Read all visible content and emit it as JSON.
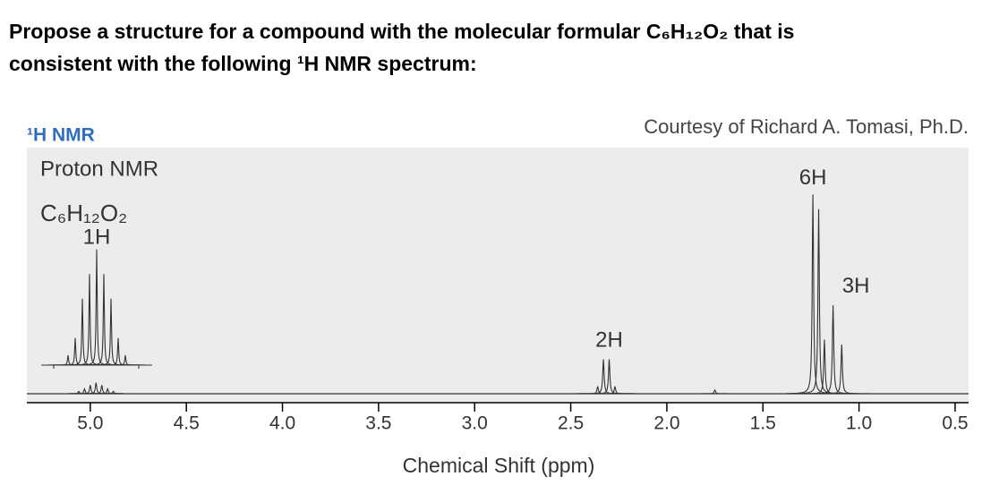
{
  "question": [
    "Propose a structure for a compound with the molecular formular C₆H₁₂O₂ that is",
    "consistent with the following ¹H NMR spectrum:"
  ],
  "chart_data": {
    "type": "nmr",
    "header": "¹H NMR",
    "credit": "Courtesy of Richard A. Tomasi, Ph.D.",
    "annotations": [
      "Proton NMR",
      "C₆H₁₂O₂"
    ],
    "xlabel": "Chemical Shift (ppm)",
    "xlim": [
      5.33,
      0.43
    ],
    "ylim": [
      0,
      100
    ],
    "xticks": [
      {
        "value": 5,
        "label": "5.0"
      },
      4.5,
      {
        "value": 4,
        "label": "4.0"
      },
      3.5,
      {
        "value": 3,
        "label": "3.0"
      },
      2.5,
      {
        "value": 2,
        "label": "2.0"
      },
      1.5,
      {
        "value": 1,
        "label": "1.0"
      },
      0.5
    ],
    "peaks": {
      "x": [
        5.06,
        5.03,
        5.0,
        4.97,
        4.94,
        4.91,
        4.88,
        2.36,
        2.33,
        2.3,
        2.27,
        1.75,
        1.24,
        1.21,
        1.18,
        1.135,
        1.09
      ],
      "y": [
        1,
        2,
        3.5,
        4.5,
        3.5,
        2,
        1,
        3,
        14,
        14,
        3,
        1.5,
        81,
        75,
        22,
        36,
        20
      ]
    },
    "labels": [
      {
        "text": "2H",
        "x": 2.3,
        "y": 20
      },
      {
        "text": "6H",
        "x": 1.24,
        "y": 86
      },
      {
        "text": "3H",
        "x": 1.1,
        "y": 42
      }
    ],
    "inset": {
      "label": "1H",
      "values": [
        4,
        11,
        27,
        37,
        47,
        37,
        27,
        11,
        4
      ]
    },
    "color": "#333333",
    "panel_color": "#ececec",
    "header_color": "#2e6fbd"
  }
}
